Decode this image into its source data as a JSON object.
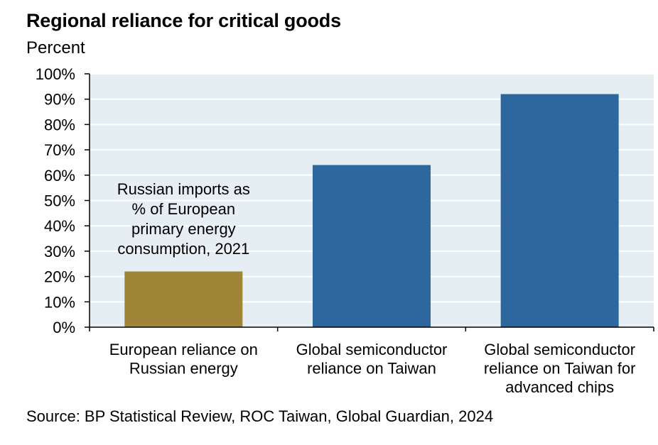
{
  "chart_data": {
    "type": "bar",
    "title": "Regional reliance for critical goods",
    "subtitle": "Percent",
    "source": "Source: BP Statistical Review, ROC Taiwan, Global Guardian, 2024",
    "ylim": [
      0,
      100
    ],
    "yticks": [
      "0%",
      "10%",
      "20%",
      "30%",
      "40%",
      "50%",
      "60%",
      "70%",
      "80%",
      "90%",
      "100%"
    ],
    "categories": [
      [
        "European reliance on",
        "Russian energy"
      ],
      [
        "Global semiconductor",
        "reliance on Taiwan"
      ],
      [
        "Global semiconductor",
        "reliance on Taiwan for",
        "advanced chips"
      ]
    ],
    "values": [
      22,
      64,
      92
    ],
    "bar_colors": [
      "#a08438",
      "#2e679d",
      "#2e679d"
    ],
    "plot_background": "#e5eef3",
    "annotation": [
      "Russian imports as",
      "% of European",
      "primary energy",
      "consumption, 2021"
    ]
  }
}
